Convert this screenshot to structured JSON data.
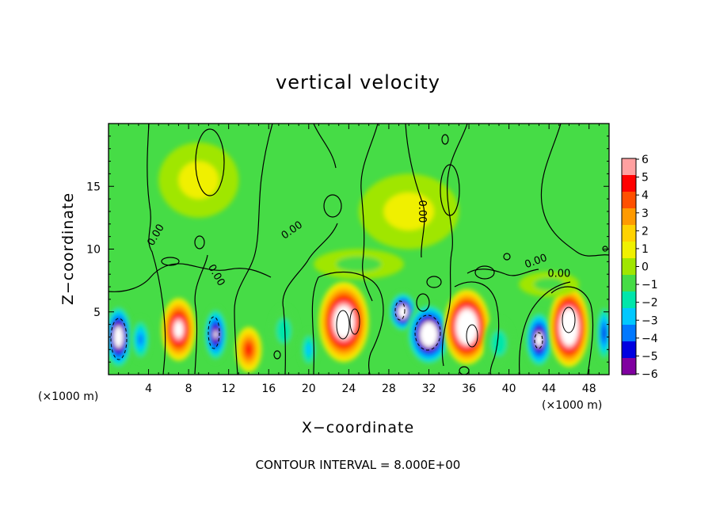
{
  "chart_data": {
    "type": "heatmap",
    "title": "vertical velocity",
    "xlabel": "X−coordinate",
    "ylabel": "Z−coordinate",
    "x_unit_label_left": "(×1000 m)",
    "x_unit_label_right": "(×1000 m)",
    "xlim": [
      0,
      50
    ],
    "ylim": [
      0,
      20
    ],
    "x_ticks": [
      4,
      8,
      12,
      16,
      20,
      24,
      28,
      32,
      36,
      40,
      44,
      48
    ],
    "y_ticks": [
      5,
      10,
      15
    ],
    "x_tick_labels": [
      "4",
      "8",
      "12",
      "16",
      "20",
      "24",
      "28",
      "32",
      "36",
      "40",
      "44",
      "48"
    ],
    "y_tick_labels": [
      "5",
      "10",
      "15"
    ],
    "colorbar": {
      "min": -6,
      "max": 6,
      "labels": [
        "6",
        "5",
        "4",
        "3",
        "2",
        "1",
        "0",
        "−1",
        "−2",
        "−3",
        "−4",
        "−5",
        "−6"
      ],
      "values": [
        6,
        5,
        4,
        3,
        2,
        1,
        0,
        -1,
        -2,
        -3,
        -4,
        -5,
        -6
      ],
      "colors": [
        "#ffa0a0",
        "#ff0000",
        "#ff5000",
        "#ff9a00",
        "#ffd200",
        "#f0f000",
        "#a0e600",
        "#46dc46",
        "#00e6aa",
        "#00c8ff",
        "#0078ff",
        "#0000e0",
        "#8000a0"
      ]
    },
    "cells": [
      {
        "x": 1.0,
        "z": 3.0,
        "value": -9,
        "rx": 1.4,
        "rz": 2.6
      },
      {
        "x": 3.2,
        "z": 2.8,
        "value": -4,
        "rx": 1.0,
        "rz": 1.8
      },
      {
        "x": 7.0,
        "z": 3.6,
        "value": 8,
        "rx": 1.7,
        "rz": 2.5
      },
      {
        "x": 10.7,
        "z": 3.2,
        "value": -7,
        "rx": 1.2,
        "rz": 2.2
      },
      {
        "x": 14.0,
        "z": 2.0,
        "value": 5,
        "rx": 1.3,
        "rz": 1.8
      },
      {
        "x": 17.5,
        "z": 3.5,
        "value": -2,
        "rx": 1.4,
        "rz": 2.0
      },
      {
        "x": 20.0,
        "z": 2.0,
        "value": -3,
        "rx": 0.9,
        "rz": 1.6
      },
      {
        "x": 23.5,
        "z": 4.2,
        "value": 10,
        "rx": 2.5,
        "rz": 3.2
      },
      {
        "x": 29.4,
        "z": 5.0,
        "value": -9,
        "rx": 1.4,
        "rz": 1.6
      },
      {
        "x": 32.0,
        "z": 3.2,
        "value": -10,
        "rx": 2.2,
        "rz": 2.5
      },
      {
        "x": 35.8,
        "z": 3.8,
        "value": 11,
        "rx": 2.3,
        "rz": 3.0
      },
      {
        "x": 39.0,
        "z": 2.5,
        "value": -2,
        "rx": 1.5,
        "rz": 2.0
      },
      {
        "x": 43.0,
        "z": 2.8,
        "value": -8,
        "rx": 1.4,
        "rz": 2.3
      },
      {
        "x": 46.0,
        "z": 3.8,
        "value": 11,
        "rx": 2.0,
        "rz": 3.2
      },
      {
        "x": 49.5,
        "z": 3.3,
        "value": -5,
        "rx": 0.8,
        "rz": 2.4
      },
      {
        "x": 25.0,
        "z": 8.8,
        "value": -1,
        "rx": 4.5,
        "rz": 1.2
      },
      {
        "x": 44.0,
        "z": 7.2,
        "value": -1,
        "rx": 3.0,
        "rz": 1.0
      },
      {
        "x": 9.0,
        "z": 15.5,
        "value": 0.6,
        "rx": 4.0,
        "rz": 3.0
      },
      {
        "x": 30.0,
        "z": 13.0,
        "value": 0.6,
        "rx": 5.0,
        "rz": 3.0
      }
    ],
    "contour_interval_label": "CONTOUR INTERVAL = 8.000E+00",
    "contour_labels": [
      {
        "text": "0.00",
        "x": 5.0,
        "z": 11.0,
        "angle": -60
      },
      {
        "text": "0.00",
        "x": 18.5,
        "z": 11.3,
        "angle": -35
      },
      {
        "text": "0.00",
        "x": 31.0,
        "z": 13.0,
        "angle": 90
      },
      {
        "text": "0.00",
        "x": 10.5,
        "z": 7.8,
        "angle": 60
      },
      {
        "text": "0.00",
        "x": 42.8,
        "z": 8.8,
        "angle": -20
      },
      {
        "text": "0.00",
        "x": 45.0,
        "z": 7.8,
        "angle": 0
      }
    ],
    "grid": false
  }
}
